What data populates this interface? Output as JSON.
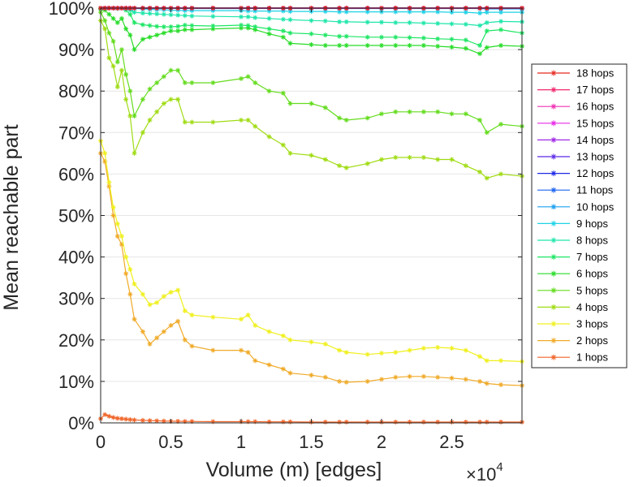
{
  "chart_data": {
    "type": "line",
    "title": "",
    "xlabel": "Volume (m) [edges]",
    "ylabel": "Mean reachable part",
    "xlim": [
      0,
      30000
    ],
    "ylim": [
      0,
      100
    ],
    "x_ticks": [
      0,
      5000,
      10000,
      15000,
      20000,
      25000
    ],
    "x_tick_labels": [
      "0",
      "0.5",
      "1",
      "1.5",
      "2",
      "2.5"
    ],
    "x_exponent_base": "×10",
    "x_exponent_power": "4",
    "y_ticks": [
      0,
      10,
      20,
      30,
      40,
      50,
      60,
      70,
      80,
      90,
      100
    ],
    "y_tick_labels": [
      "0%",
      "10%",
      "20%",
      "30%",
      "40%",
      "50%",
      "60%",
      "70%",
      "80%",
      "90%",
      "100%"
    ],
    "grid": true,
    "legend_position": "right",
    "x": [
      0,
      300,
      600,
      900,
      1200,
      1500,
      1800,
      2100,
      2400,
      3000,
      3500,
      4000,
      4500,
      5000,
      5500,
      6000,
      6500,
      8000,
      10000,
      10500,
      11000,
      12000,
      13000,
      13500,
      15000,
      16000,
      17000,
      17500,
      19000,
      20000,
      21000,
      22000,
      23000,
      24000,
      25000,
      26000,
      27000,
      27500,
      28500,
      30000
    ],
    "series": [
      {
        "name": "18 hops",
        "color": "#e6281e",
        "values": [
          100,
          100,
          100,
          100,
          100,
          100,
          100,
          100,
          100,
          100,
          100,
          100,
          100,
          100,
          100,
          100,
          100,
          100,
          100,
          100,
          100,
          100,
          100,
          100,
          100,
          100,
          100,
          100,
          100,
          100,
          100,
          100,
          100,
          100,
          100,
          100,
          100,
          100,
          100,
          100
        ]
      },
      {
        "name": "17 hops",
        "color": "#f0286e",
        "values": [
          100,
          100,
          100,
          100,
          100,
          100,
          100,
          100,
          100,
          100,
          100,
          100,
          100,
          100,
          100,
          100,
          100,
          100,
          100,
          100,
          100,
          100,
          100,
          100,
          100,
          100,
          100,
          100,
          100,
          100,
          100,
          100,
          100,
          100,
          100,
          100,
          100,
          100,
          100,
          100
        ]
      },
      {
        "name": "16 hops",
        "color": "#f032b4",
        "values": [
          100,
          100,
          100,
          100,
          100,
          100,
          100,
          100,
          100,
          100,
          100,
          100,
          100,
          100,
          100,
          100,
          100,
          100,
          100,
          100,
          100,
          100,
          100,
          100,
          100,
          100,
          100,
          100,
          100,
          100,
          100,
          100,
          100,
          100,
          100,
          100,
          100,
          100,
          100,
          100
        ]
      },
      {
        "name": "15 hops",
        "color": "#e628e6",
        "values": [
          100,
          100,
          100,
          100,
          100,
          100,
          100,
          100,
          100,
          100,
          100,
          100,
          100,
          100,
          100,
          100,
          100,
          100,
          100,
          100,
          100,
          100,
          100,
          100,
          100,
          100,
          100,
          100,
          100,
          100,
          100,
          100,
          100,
          100,
          100,
          100,
          100,
          100,
          100,
          100
        ]
      },
      {
        "name": "14 hops",
        "color": "#a028e6",
        "values": [
          100,
          100,
          100,
          100,
          100,
          100,
          100,
          100,
          100,
          100,
          100,
          100,
          100,
          100,
          100,
          100,
          100,
          100,
          100,
          100,
          100,
          100,
          100,
          100,
          100,
          100,
          100,
          100,
          100,
          100,
          100,
          100,
          100,
          100,
          100,
          100,
          100,
          100,
          100,
          100
        ]
      },
      {
        "name": "13 hops",
        "color": "#5a28e6",
        "values": [
          100,
          100,
          100,
          100,
          100,
          100,
          100,
          100,
          100,
          100,
          100,
          100,
          100,
          100,
          100,
          100,
          100,
          100,
          100,
          100,
          100,
          100,
          100,
          100,
          100,
          100,
          100,
          100,
          100,
          100,
          100,
          100,
          100,
          100,
          100,
          100,
          100,
          100,
          100,
          100
        ]
      },
      {
        "name": "12 hops",
        "color": "#1e28e6",
        "values": [
          100,
          100,
          100,
          100,
          100,
          100,
          100,
          100,
          100,
          100,
          100,
          100,
          100,
          100,
          100,
          100,
          100,
          100,
          100,
          100,
          100,
          100,
          100,
          100,
          100,
          100,
          100,
          100,
          100,
          100,
          100,
          100,
          100,
          100,
          100,
          100,
          100,
          100,
          100,
          100
        ]
      },
      {
        "name": "11 hops",
        "color": "#1e64f0",
        "values": [
          100,
          100,
          100,
          100,
          100,
          100,
          100,
          100,
          100,
          100,
          100,
          100,
          100,
          100,
          100,
          100,
          100,
          100,
          100,
          100,
          100,
          100,
          100,
          100,
          100,
          100,
          100,
          100,
          100,
          100,
          100,
          100,
          100,
          100,
          100,
          100,
          100,
          100,
          100,
          100
        ]
      },
      {
        "name": "10 hops",
        "color": "#1ea0f0",
        "values": [
          100,
          100,
          100,
          100,
          100,
          100,
          100,
          100,
          100,
          100,
          100,
          100,
          100,
          100,
          100,
          99.9,
          99.9,
          99.9,
          99.9,
          99.9,
          99.9,
          99.9,
          99.9,
          99.9,
          99.9,
          99.9,
          99.9,
          99.9,
          99.9,
          99.9,
          99.9,
          99.9,
          99.9,
          99.9,
          99.9,
          99.9,
          99.9,
          99.8,
          99.8,
          99.8
        ]
      },
      {
        "name": "9 hops",
        "color": "#1ed2e6",
        "values": [
          100,
          100,
          100,
          100,
          100,
          100,
          100,
          100,
          99.9,
          99.8,
          99.7,
          99.6,
          99.6,
          99.5,
          99.5,
          99.4,
          99.4,
          99.4,
          99.4,
          99.3,
          99.3,
          99.3,
          99.3,
          99.2,
          99.2,
          99.2,
          99.1,
          99.1,
          99.1,
          99.1,
          99.1,
          99.1,
          99.1,
          99.1,
          99.0,
          99.0,
          98.8,
          99.0,
          99.0,
          99.0
        ]
      },
      {
        "name": "8 hops",
        "color": "#1ee6aa",
        "values": [
          100,
          100,
          100,
          100,
          100,
          100,
          99.8,
          99.5,
          99.0,
          98.8,
          98.7,
          98.6,
          98.5,
          98.4,
          98.3,
          98.2,
          98.1,
          98.0,
          97.9,
          97.9,
          97.7,
          97.5,
          97.3,
          97.2,
          97.0,
          96.9,
          96.7,
          96.7,
          96.6,
          96.6,
          96.5,
          96.5,
          96.4,
          96.3,
          96.2,
          96.1,
          95.8,
          96.5,
          96.8,
          96.7
        ]
      },
      {
        "name": "7 hops",
        "color": "#1ee664",
        "values": [
          100,
          100,
          100,
          100,
          99.9,
          100,
          99.5,
          98.5,
          96.5,
          96.0,
          95.8,
          95.6,
          95.5,
          95.5,
          95.6,
          95.9,
          95.8,
          95.7,
          95.9,
          95.8,
          95.5,
          95.0,
          94.5,
          94.0,
          93.8,
          93.5,
          93.2,
          93.2,
          93.0,
          93.0,
          93.0,
          92.9,
          92.8,
          92.6,
          92.5,
          92.3,
          91.0,
          94.5,
          94.8,
          94.0
        ]
      },
      {
        "name": "6 hops",
        "color": "#28dc28",
        "values": [
          99.8,
          99.5,
          98.5,
          97.5,
          96.5,
          97.5,
          95.0,
          93.5,
          90.0,
          92.5,
          93.0,
          93.5,
          94.0,
          94.5,
          94.5,
          94.8,
          94.8,
          95.0,
          95.2,
          95.2,
          94.8,
          93.8,
          93.0,
          91.5,
          91.2,
          91.0,
          91.0,
          91.0,
          91.0,
          91.0,
          91.0,
          91.0,
          91.0,
          90.8,
          90.6,
          90.3,
          89.0,
          90.5,
          91.0,
          90.8
        ]
      },
      {
        "name": "5 hops",
        "color": "#64dc1e",
        "values": [
          99.0,
          97.0,
          94.0,
          92.0,
          87.0,
          90.0,
          84.0,
          80.0,
          74.0,
          78.0,
          80.5,
          82.0,
          83.5,
          85.0,
          85.0,
          82.0,
          82.0,
          82.0,
          83.0,
          83.5,
          82.0,
          80.0,
          79.5,
          77.0,
          77.0,
          76.0,
          73.5,
          73.0,
          73.5,
          74.5,
          75.0,
          75.0,
          75.0,
          75.0,
          74.5,
          74.5,
          73.0,
          70.0,
          72.0,
          71.5
        ]
      },
      {
        "name": "4 hops",
        "color": "#a0dc14",
        "values": [
          97.0,
          95.0,
          88.0,
          86.0,
          81.0,
          85.0,
          78.0,
          74.0,
          65.0,
          70.0,
          73.0,
          75.0,
          77.0,
          78.0,
          78.0,
          72.5,
          72.5,
          72.5,
          73.0,
          73.0,
          71.5,
          69.0,
          67.0,
          65.0,
          64.5,
          63.5,
          62.0,
          61.5,
          62.5,
          63.5,
          64.0,
          64.0,
          64.0,
          63.5,
          63.5,
          62.0,
          60.5,
          59.0,
          60.0,
          59.5
        ]
      },
      {
        "name": "3 hops",
        "color": "#f0f01e",
        "values": [
          68.0,
          65.0,
          58.0,
          52.0,
          48.0,
          45.0,
          40.0,
          37.0,
          33.5,
          31.0,
          28.5,
          29.0,
          30.5,
          31.5,
          32.0,
          27.0,
          26.0,
          25.5,
          25.0,
          26.0,
          23.5,
          22.0,
          21.0,
          20.0,
          19.5,
          19.0,
          17.5,
          17.0,
          16.5,
          16.8,
          17.0,
          17.5,
          18.0,
          18.2,
          18.0,
          17.5,
          16.0,
          15.0,
          15.0,
          14.8
        ]
      },
      {
        "name": "2 hops",
        "color": "#f0aa28",
        "values": [
          65.0,
          63.0,
          57.0,
          50.0,
          45.0,
          43.0,
          36.0,
          31.0,
          25.0,
          22.0,
          19.0,
          20.5,
          22.0,
          23.5,
          24.5,
          20.0,
          18.5,
          17.5,
          17.5,
          17.0,
          15.0,
          14.0,
          13.0,
          12.0,
          11.5,
          11.0,
          10.0,
          9.8,
          10.0,
          10.5,
          11.0,
          11.2,
          11.2,
          11.0,
          10.8,
          10.5,
          10.0,
          9.5,
          9.2,
          9.0
        ]
      },
      {
        "name": "1 hops",
        "color": "#f06428",
        "values": [
          1.0,
          2.0,
          1.6,
          1.3,
          1.1,
          1.0,
          0.9,
          0.8,
          0.7,
          0.6,
          0.55,
          0.5,
          0.45,
          0.4,
          0.4,
          0.35,
          0.35,
          0.3,
          0.3,
          0.3,
          0.3,
          0.25,
          0.25,
          0.25,
          0.2,
          0.2,
          0.2,
          0.2,
          0.2,
          0.2,
          0.2,
          0.2,
          0.2,
          0.2,
          0.2,
          0.2,
          0.2,
          0.2,
          0.2,
          0.2
        ]
      }
    ]
  }
}
